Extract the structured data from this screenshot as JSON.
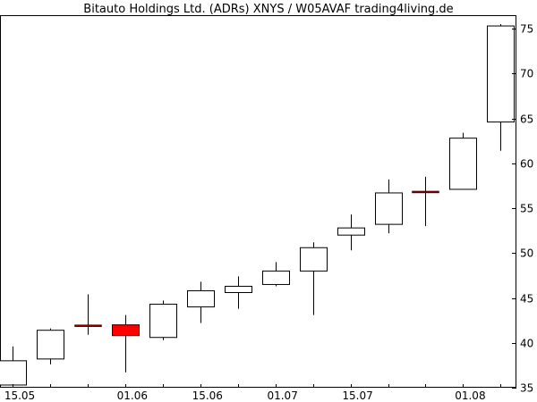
{
  "chart_data": {
    "type": "candlestick",
    "title": "Bitauto Holdings Ltd. (ADRs) XNYS / W05AVAF trading4living.de",
    "xlabel": "",
    "ylabel": "",
    "ylim": [
      35,
      76.5
    ],
    "y_ticks": [
      35,
      40,
      45,
      50,
      55,
      60,
      65,
      70,
      75
    ],
    "y_axis_position": "right",
    "x_tick_labels": [
      {
        "label": "15.05",
        "index": 0
      },
      {
        "label": "01.06",
        "index": 3
      },
      {
        "label": "15.06",
        "index": 5
      },
      {
        "label": "01.07",
        "index": 7
      },
      {
        "label": "15.07",
        "index": 9
      },
      {
        "label": "01.08",
        "index": 12
      }
    ],
    "grid": false,
    "colors": {
      "up_fill": "#ffffff",
      "down_fill": "#ff0000",
      "neutral_body": "#800000",
      "outline": "#000000"
    },
    "candles": [
      {
        "open": 35.3,
        "high": 39.6,
        "low": 35.0,
        "close": 38.0
      },
      {
        "open": 38.2,
        "high": 41.6,
        "low": 37.6,
        "close": 41.4
      },
      {
        "open": 41.8,
        "high": 45.4,
        "low": 40.9,
        "close": 41.9
      },
      {
        "open": 42.0,
        "high": 43.1,
        "low": 36.7,
        "close": 40.8
      },
      {
        "open": 40.6,
        "high": 44.7,
        "low": 40.3,
        "close": 44.3
      },
      {
        "open": 44.0,
        "high": 46.8,
        "low": 42.2,
        "close": 45.8
      },
      {
        "open": 45.6,
        "high": 47.4,
        "low": 43.8,
        "close": 46.3
      },
      {
        "open": 46.5,
        "high": 49.0,
        "low": 46.3,
        "close": 48.0
      },
      {
        "open": 48.0,
        "high": 51.2,
        "low": 43.1,
        "close": 50.6
      },
      {
        "open": 52.0,
        "high": 54.3,
        "low": 50.3,
        "close": 52.8
      },
      {
        "open": 53.2,
        "high": 58.2,
        "low": 52.2,
        "close": 56.7
      },
      {
        "open": 56.8,
        "high": 58.5,
        "low": 53.0,
        "close": 56.8
      },
      {
        "open": 57.1,
        "high": 63.4,
        "low": 57.1,
        "close": 62.8
      },
      {
        "open": 64.6,
        "high": 75.5,
        "low": 61.4,
        "close": 75.3
      }
    ]
  }
}
